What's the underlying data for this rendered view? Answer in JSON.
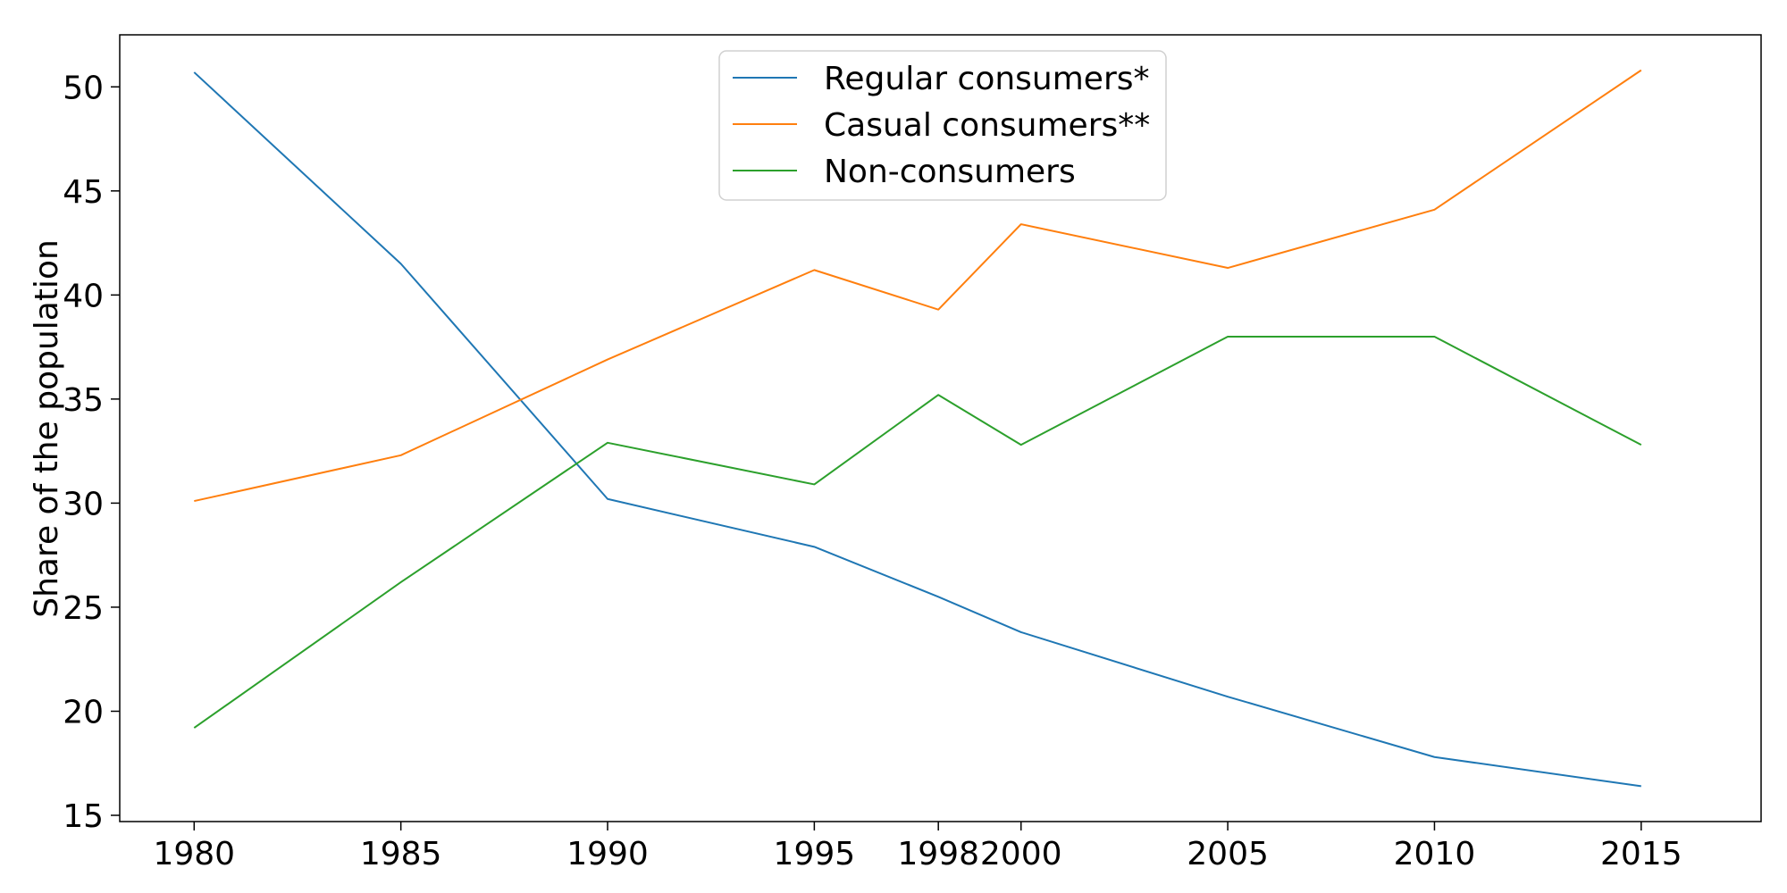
{
  "chart_data": {
    "type": "line",
    "title": "",
    "xlabel": "",
    "ylabel": "Share of the population",
    "x": [
      1980,
      1985,
      1990,
      1995,
      1998,
      2000,
      2005,
      2010,
      2015
    ],
    "x_tick_labels": [
      "1980",
      "1985",
      "1990",
      "1995",
      "1998",
      "2000",
      "2005",
      "2010",
      "2015"
    ],
    "y_ticks": [
      15,
      20,
      25,
      30,
      35,
      40,
      45,
      50
    ],
    "y_tick_labels": [
      "15",
      "20",
      "25",
      "30",
      "35",
      "40",
      "45",
      "50"
    ],
    "xlim": [
      1978.2,
      2017.9
    ],
    "ylim": [
      14.7,
      52.5
    ],
    "grid": false,
    "legend": "upper-center",
    "series": [
      {
        "name": "Regular consumers*",
        "color": "#1f77b4",
        "values": [
          50.7,
          41.5,
          30.2,
          27.9,
          25.5,
          23.8,
          20.7,
          17.8,
          16.4
        ]
      },
      {
        "name": "Casual consumers**",
        "color": "#ff7f0e",
        "values": [
          30.1,
          32.3,
          36.9,
          41.2,
          39.3,
          43.4,
          41.3,
          44.1,
          50.8
        ]
      },
      {
        "name": "Non-consumers",
        "color": "#2ca02c",
        "values": [
          19.2,
          26.2,
          32.9,
          30.9,
          35.2,
          32.8,
          38.0,
          38.0,
          32.8
        ]
      }
    ]
  }
}
